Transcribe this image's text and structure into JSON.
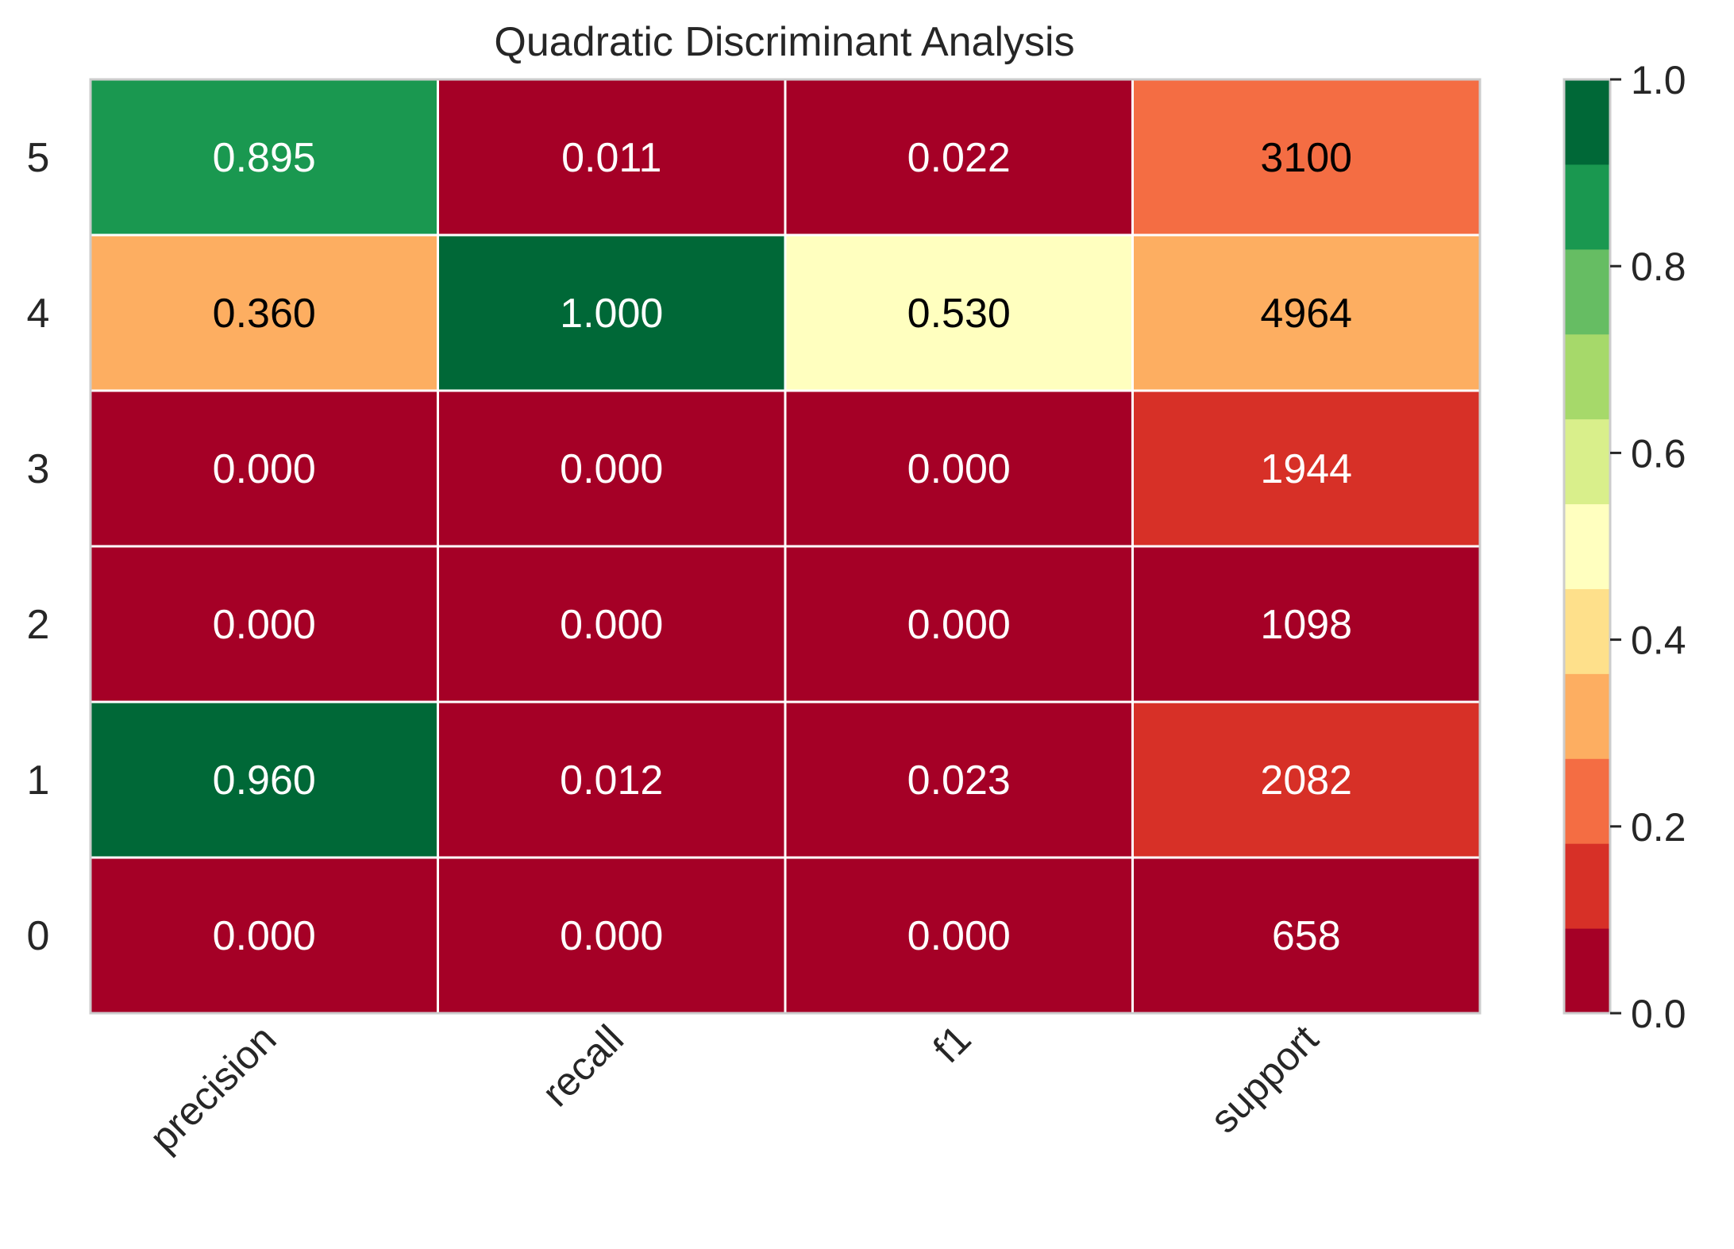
{
  "chart_data": {
    "type": "heatmap",
    "title": "Quadratic Discriminant Analysis",
    "xlabel": "",
    "ylabel": "",
    "columns": [
      "precision",
      "recall",
      "f1",
      "support"
    ],
    "rows": [
      "5",
      "4",
      "3",
      "2",
      "1",
      "0"
    ],
    "cells": [
      {
        "value": 0.895,
        "label": "0.895",
        "color": "#1a9850",
        "text_color": "#ffffff"
      },
      {
        "value": 0.011,
        "label": "0.011",
        "color": "#a50026",
        "text_color": "#ffffff"
      },
      {
        "value": 0.022,
        "label": "0.022",
        "color": "#a50026",
        "text_color": "#ffffff"
      },
      {
        "value": 3100,
        "label": "3100",
        "color": "#f46d43",
        "text_color": "#000000"
      },
      {
        "value": 0.36,
        "label": "0.360",
        "color": "#fdae61",
        "text_color": "#000000"
      },
      {
        "value": 1.0,
        "label": "1.000",
        "color": "#006837",
        "text_color": "#ffffff"
      },
      {
        "value": 0.53,
        "label": "0.530",
        "color": "#ffffbf",
        "text_color": "#000000"
      },
      {
        "value": 4964,
        "label": "4964",
        "color": "#fdae61",
        "text_color": "#000000"
      },
      {
        "value": 0.0,
        "label": "0.000",
        "color": "#a50026",
        "text_color": "#ffffff"
      },
      {
        "value": 0.0,
        "label": "0.000",
        "color": "#a50026",
        "text_color": "#ffffff"
      },
      {
        "value": 0.0,
        "label": "0.000",
        "color": "#a50026",
        "text_color": "#ffffff"
      },
      {
        "value": 1944,
        "label": "1944",
        "color": "#d73027",
        "text_color": "#ffffff"
      },
      {
        "value": 0.0,
        "label": "0.000",
        "color": "#a50026",
        "text_color": "#ffffff"
      },
      {
        "value": 0.0,
        "label": "0.000",
        "color": "#a50026",
        "text_color": "#ffffff"
      },
      {
        "value": 0.0,
        "label": "0.000",
        "color": "#a50026",
        "text_color": "#ffffff"
      },
      {
        "value": 1098,
        "label": "1098",
        "color": "#a50026",
        "text_color": "#ffffff"
      },
      {
        "value": 0.96,
        "label": "0.960",
        "color": "#006837",
        "text_color": "#ffffff"
      },
      {
        "value": 0.012,
        "label": "0.012",
        "color": "#a50026",
        "text_color": "#ffffff"
      },
      {
        "value": 0.023,
        "label": "0.023",
        "color": "#a50026",
        "text_color": "#ffffff"
      },
      {
        "value": 2082,
        "label": "2082",
        "color": "#d73027",
        "text_color": "#ffffff"
      },
      {
        "value": 0.0,
        "label": "0.000",
        "color": "#a50026",
        "text_color": "#ffffff"
      },
      {
        "value": 0.0,
        "label": "0.000",
        "color": "#a50026",
        "text_color": "#ffffff"
      },
      {
        "value": 0.0,
        "label": "0.000",
        "color": "#a50026",
        "text_color": "#ffffff"
      },
      {
        "value": 658,
        "label": "658",
        "color": "#a50026",
        "text_color": "#ffffff"
      }
    ],
    "colorbar": {
      "range": [
        0.0,
        1.0
      ],
      "ticks": [
        "0.0",
        "0.2",
        "0.4",
        "0.6",
        "0.8",
        "1.0"
      ],
      "colors": [
        "#a50026",
        "#d73027",
        "#f46d43",
        "#fdae61",
        "#fee08b",
        "#ffffbf",
        "#d9ef8b",
        "#a6d96a",
        "#66bd63",
        "#1a9850",
        "#006837"
      ]
    },
    "grid": false,
    "legend": "colorbar-right"
  }
}
